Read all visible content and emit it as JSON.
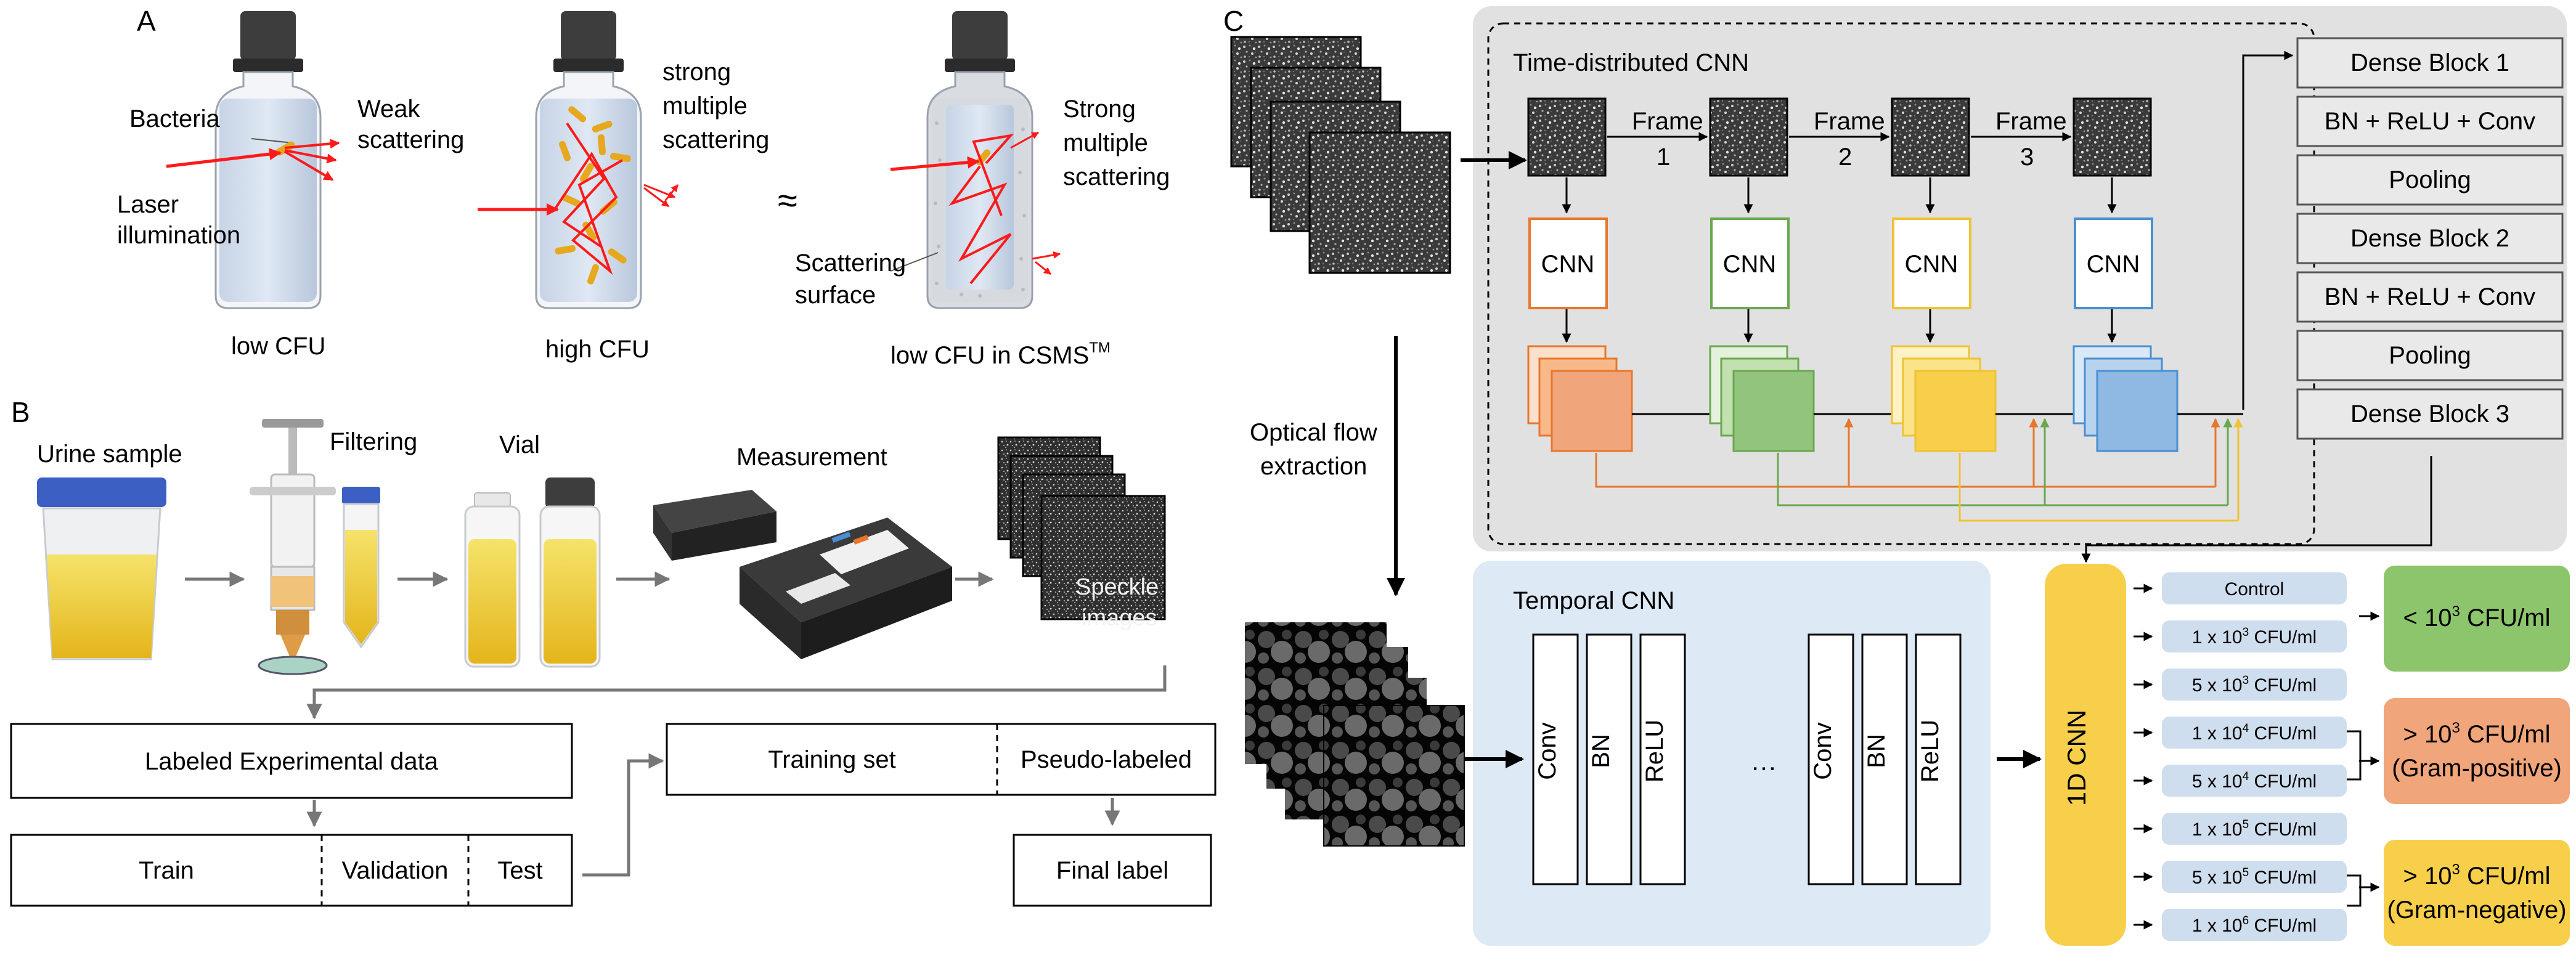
{
  "panel_a": {
    "label": "A",
    "bacteria": "Bacteria",
    "weak_scattering": [
      "Weak",
      "scattering"
    ],
    "laser_illumination": [
      "Laser",
      "illumination"
    ],
    "low_cfu": "low CFU",
    "strong_multiple_scattering_1": [
      "strong",
      "multiple",
      "scattering"
    ],
    "high_cfu": "high CFU",
    "approx": "≈",
    "strong_multiple_scattering_2": [
      "Strong",
      "multiple",
      "scattering"
    ],
    "scattering_surface": [
      "Scattering",
      "surface"
    ],
    "low_cfu_csms": "low CFU in CSMS",
    "tm": "TM"
  },
  "panel_b": {
    "label": "B",
    "urine_sample": "Urine sample",
    "filtering": "Filtering",
    "vial": "Vial",
    "measurement": "Measurement",
    "speckle_images": [
      "Speckle",
      "images"
    ],
    "labeled_data": "Labeled Experimental data",
    "train": "Train",
    "validation": "Validation",
    "test": "Test",
    "training_set": "Training set",
    "pseudo_labeled": "Pseudo-labeled",
    "final_label": "Final label"
  },
  "panel_c": {
    "label": "C",
    "time_distributed_cnn": "Time-distributed CNN",
    "frame_word": "Frame",
    "frame_numbers": [
      "1",
      "2",
      "3"
    ],
    "cnn_label": "CNN",
    "optical_flow": [
      "Optical flow",
      "extraction"
    ],
    "dense_stack": [
      "Dense Block 1",
      "BN + ReLU + Conv",
      "Pooling",
      "Dense Block 2",
      "BN + ReLU + Conv",
      "Pooling",
      "Dense Block 3"
    ],
    "temporal_cnn": "Temporal CNN",
    "temporal_layers": [
      "Conv",
      "BN",
      "ReLU"
    ],
    "ellipsis": "…",
    "one_d_cnn": "1D CNN",
    "classes": [
      {
        "base": "Control"
      },
      {
        "base": "1 x 10",
        "sup": "3",
        "suffix": " CFU/ml"
      },
      {
        "base": "5 x 10",
        "sup": "3",
        "suffix": " CFU/ml"
      },
      {
        "base": "1 x 10",
        "sup": "4",
        "suffix": " CFU/ml"
      },
      {
        "base": "5 x 10",
        "sup": "4",
        "suffix": " CFU/ml"
      },
      {
        "base": "1 x 10",
        "sup": "5",
        "suffix": " CFU/ml"
      },
      {
        "base": "5 x 10",
        "sup": "5",
        "suffix": " CFU/ml"
      },
      {
        "base": "1 x 10",
        "sup": "6",
        "suffix": " CFU/ml"
      }
    ],
    "outputs": [
      {
        "line1_pre": "< 10",
        "sup": "3",
        "line1_post": " CFU/ml",
        "line2": "",
        "color": "#8cc56b"
      },
      {
        "line1_pre": "> 10",
        "sup": "3",
        "line1_post": " CFU/ml",
        "line2": "(Gram-positive)",
        "color": "#f0a57a"
      },
      {
        "line1_pre": "> 10",
        "sup": "3",
        "line1_post": " CFU/ml",
        "line2": "(Gram-negative)",
        "color": "#f7cf4a"
      }
    ],
    "colors": {
      "frame1": "#e8762d",
      "frame2": "#6aa84f",
      "frame3": "#f1c232",
      "frame4": "#4a8fd1",
      "gray_panel": "#e1e1e1",
      "blue_panel": "#dde9f4",
      "class_pill": "#cfdeee",
      "one_d_cnn": "#f7cf4a"
    }
  }
}
